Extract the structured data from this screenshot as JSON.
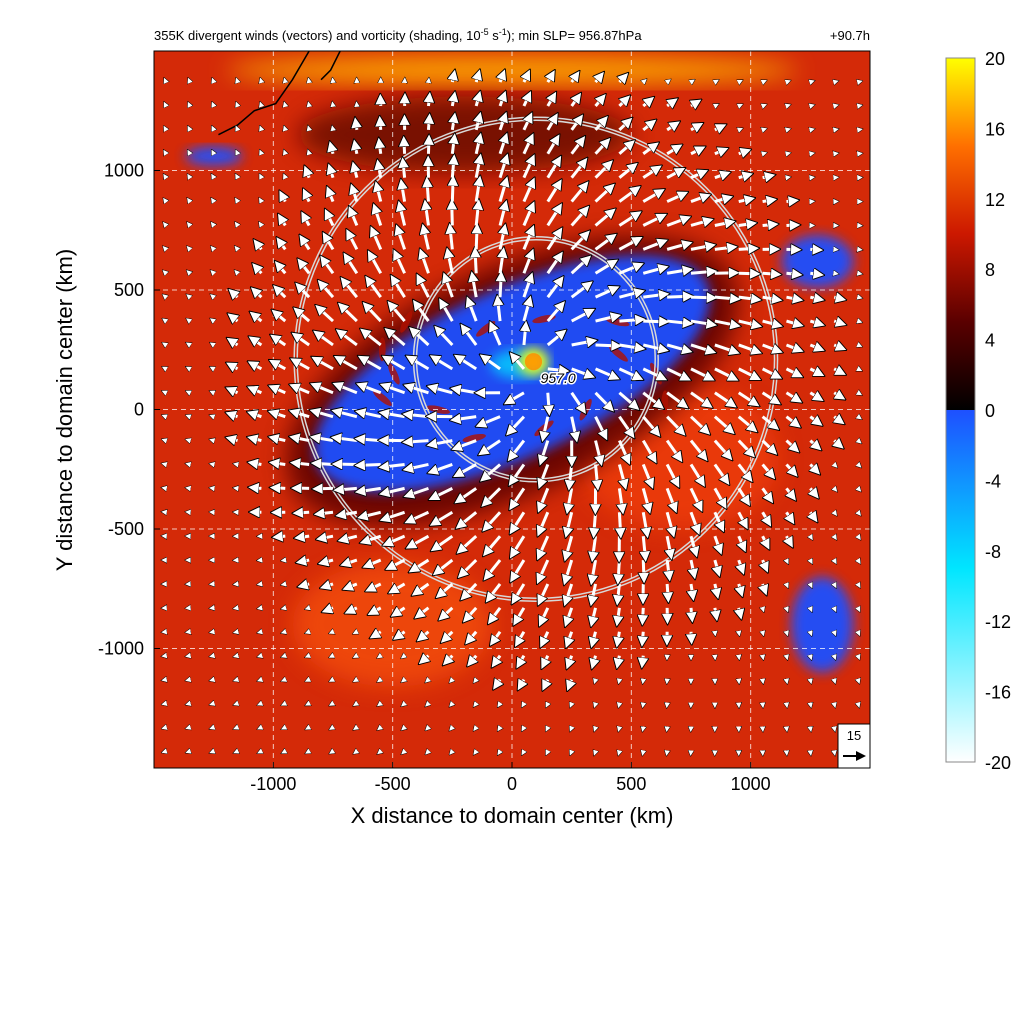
{
  "chart_data": {
    "type": "heatmap",
    "title": "355K divergent winds (vectors) and vorticity (shading, 10",
    "title_exp1": "-5",
    "title_mid": " s",
    "title_exp2": "-1",
    "title_tail": "); min SLP= 956.87hPa",
    "time_label": "+90.7h",
    "xlabel": "X distance to domain center (km)",
    "ylabel": "Y distance to domain center (km)",
    "xlim": [
      -1500,
      1500
    ],
    "ylim": [
      -1500,
      1500
    ],
    "x_ticks": [
      -1000,
      -500,
      0,
      500,
      1000
    ],
    "y_ticks": [
      -1000,
      -500,
      0,
      500,
      1000
    ],
    "x_tick_labels": [
      "-1000",
      "-500",
      "0",
      "500",
      "1000"
    ],
    "y_tick_labels": [
      "-1000",
      "-500",
      "0",
      "500",
      "1000"
    ],
    "grid": true,
    "colorbar": {
      "ticks": [
        "20",
        "16",
        "12",
        "8",
        "4",
        "0",
        "-4",
        "-8",
        "-12",
        "-16",
        "-20"
      ],
      "range": [
        -20,
        20
      ],
      "colors": {
        "max": "#ffff00",
        "high": "#ff8800",
        "mid": "#e83010",
        "low_pos": "#9a1000",
        "zero": "#000000",
        "neg_small": "#1e50ff",
        "neg_mid": "#00e6ff",
        "neg_max": "#ffffff"
      }
    },
    "center_label": "957.0",
    "center_km": [
      100,
      150
    ],
    "range_rings_km": [
      {
        "center": [
          100,
          210
        ],
        "radius": 500
      },
      {
        "center": [
          100,
          210
        ],
        "radius": 1000
      }
    ],
    "reference_vector": {
      "label": "15"
    },
    "vorticity_features": [
      {
        "kind": "negative_band",
        "cx": 0,
        "cy": 150,
        "rx": 900,
        "ry": 350,
        "rot": 25
      },
      {
        "kind": "positive_core",
        "cx": 90,
        "cy": 200,
        "rx": 60,
        "ry": 55,
        "rot": 0
      },
      {
        "kind": "positive_band",
        "cx": 0,
        "cy": 1420,
        "rx": 1200,
        "ry": 60,
        "rot": 0
      },
      {
        "kind": "negative_patch",
        "cx": 1280,
        "cy": 620,
        "rx": 150,
        "ry": 110,
        "rot": 0
      },
      {
        "kind": "negative_patch",
        "cx": 1300,
        "cy": -900,
        "rx": 130,
        "ry": 200,
        "rot": 0
      },
      {
        "kind": "negative_patch",
        "cx": -1250,
        "cy": 1060,
        "rx": 120,
        "ry": 40,
        "rot": 0
      }
    ]
  }
}
